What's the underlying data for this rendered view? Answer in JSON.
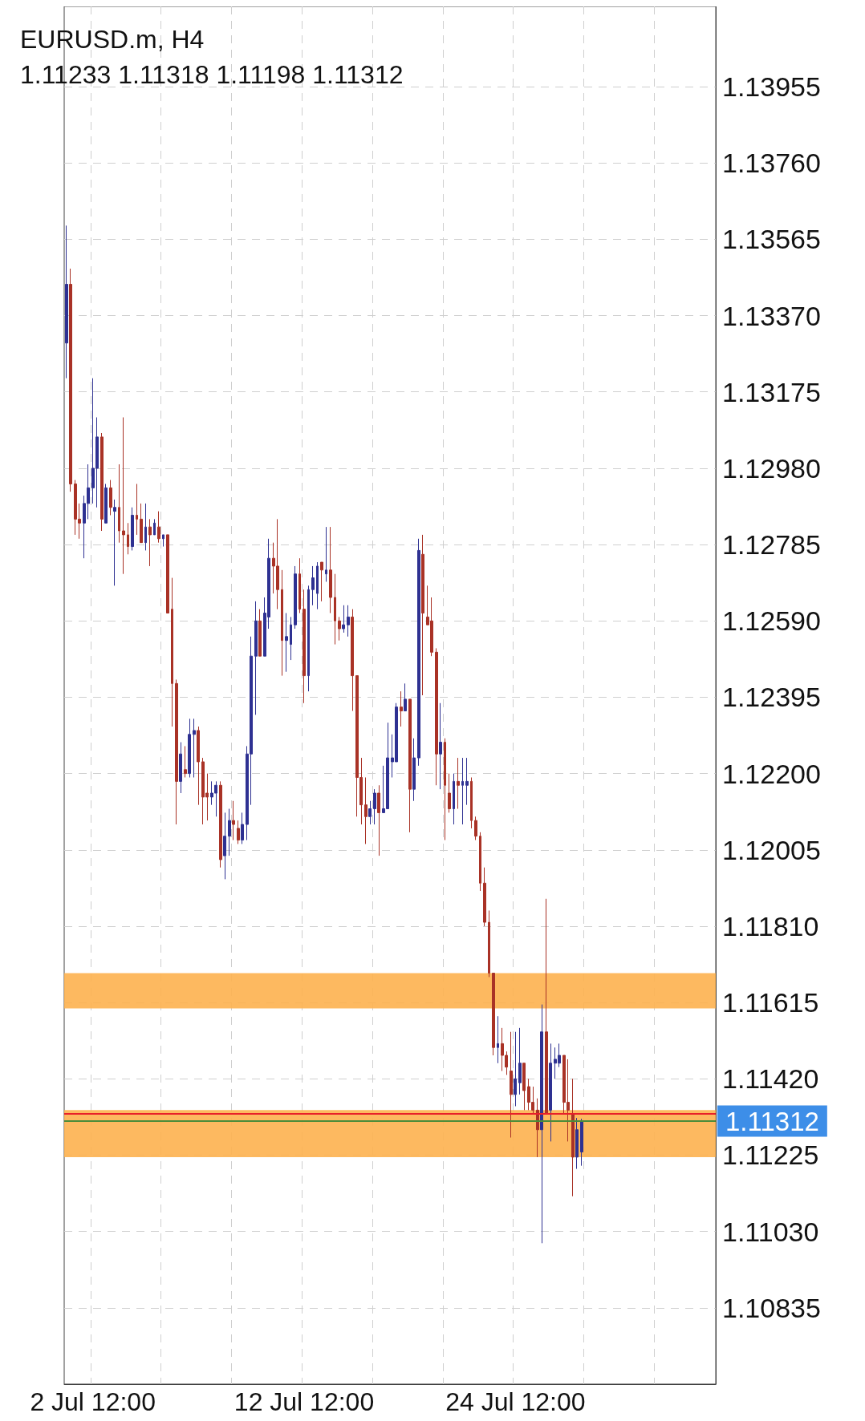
{
  "chart_data": {
    "type": "candlestick",
    "title": "EURUSD.m, H4",
    "subtitle": "1.11233 1.11318 1.11198 1.11312",
    "categories": [
      null,
      null,
      null,
      null,
      null,
      null,
      "2 Jul 12:00",
      null,
      null,
      null,
      null,
      null,
      null,
      null,
      null,
      null,
      null,
      null,
      null,
      null,
      null,
      null,
      null,
      null,
      null,
      null,
      null,
      null,
      null,
      null,
      null,
      null,
      null,
      null,
      null,
      null,
      null,
      null,
      null,
      null,
      null,
      null,
      null,
      null,
      null,
      null,
      null,
      null,
      null,
      null,
      null,
      null,
      null,
      null,
      "12 Jul 12:00",
      null,
      null,
      null,
      null,
      null,
      null,
      null,
      null,
      null,
      null,
      null,
      null,
      null,
      null,
      null,
      null,
      null,
      null,
      null,
      null,
      null,
      null,
      null,
      null,
      null,
      null,
      null,
      null,
      null,
      null,
      null,
      null,
      null,
      null,
      null,
      null,
      null,
      null,
      null,
      null,
      null,
      null,
      null,
      null,
      null,
      null,
      null,
      "24 Jul 12:00",
      null,
      null,
      null,
      null,
      null,
      null,
      null,
      null,
      null,
      null,
      null,
      null,
      null,
      null,
      null,
      null,
      null,
      null,
      null,
      null,
      null,
      null,
      null,
      null,
      null,
      null,
      null,
      null,
      null,
      null,
      null,
      null,
      null,
      null,
      null,
      null,
      null,
      null,
      null,
      null,
      null,
      null,
      null,
      null,
      null
    ],
    "ohlc": [
      [
        1.133,
        1.136,
        1.1321,
        1.1345
      ],
      [
        1.1345,
        1.1349,
        1.1292,
        1.1294
      ],
      [
        1.1294,
        1.1295,
        1.1281,
        1.1285
      ],
      [
        1.1285,
        1.1289,
        1.128,
        1.1284
      ],
      [
        1.1284,
        1.1291,
        1.1275,
        1.1289
      ],
      [
        1.1289,
        1.1299,
        1.1285,
        1.1293
      ],
      [
        1.1293,
        1.1321,
        1.1289,
        1.1298
      ],
      [
        1.1298,
        1.1311,
        1.1288,
        1.1306
      ],
      [
        1.1306,
        1.1307,
        1.1282,
        1.1285
      ],
      [
        1.1284,
        1.1294,
        1.1284,
        1.1293
      ],
      [
        1.1293,
        1.1295,
        1.1286,
        1.1288
      ],
      [
        1.1287,
        1.129,
        1.1268,
        1.1288
      ],
      [
        1.1288,
        1.1299,
        1.1279,
        1.1282
      ],
      [
        1.1282,
        1.1311,
        1.1271,
        1.1281
      ],
      [
        1.1281,
        1.1284,
        1.1276,
        1.1278
      ],
      [
        1.1278,
        1.1288,
        1.1277,
        1.1286
      ],
      [
        1.1286,
        1.1294,
        1.1281,
        1.1285
      ],
      [
        1.1285,
        1.1289,
        1.1279,
        1.1279
      ],
      [
        1.1279,
        1.1289,
        1.1277,
        1.1283
      ],
      [
        1.1283,
        1.1285,
        1.1273,
        1.1281
      ],
      [
        1.1281,
        1.1285,
        1.1281,
        1.1284
      ],
      [
        1.1283,
        1.1287,
        1.1279,
        1.128
      ],
      [
        1.128,
        1.1281,
        1.1278,
        1.1281
      ],
      [
        1.1281,
        1.1281,
        1.1261,
        1.1261
      ],
      [
        1.1262,
        1.127,
        1.1232,
        1.1243
      ],
      [
        1.1243,
        1.1244,
        1.1207,
        1.1218
      ],
      [
        1.1218,
        1.1228,
        1.1215,
        1.1225
      ],
      [
        1.1221,
        1.1227,
        1.1219,
        1.122
      ],
      [
        1.122,
        1.1234,
        1.1219,
        1.123
      ],
      [
        1.123,
        1.1234,
        1.1219,
        1.1231
      ],
      [
        1.1231,
        1.1232,
        1.1212,
        1.1223
      ],
      [
        1.1223,
        1.1224,
        1.1207,
        1.1214
      ],
      [
        1.1215,
        1.122,
        1.1208,
        1.1214
      ],
      [
        1.1214,
        1.1218,
        1.1212,
        1.1215
      ],
      [
        1.1215,
        1.1218,
        1.1209,
        1.1217
      ],
      [
        1.1217,
        1.1218,
        1.1196,
        1.1198
      ],
      [
        1.1199,
        1.121,
        1.1193,
        1.1204
      ],
      [
        1.1204,
        1.1211,
        1.1199,
        1.1208
      ],
      [
        1.1208,
        1.1213,
        1.1203,
        1.1207
      ],
      [
        1.1206,
        1.1208,
        1.1202,
        1.1203
      ],
      [
        1.1203,
        1.121,
        1.1202,
        1.1207
      ],
      [
        1.1207,
        1.1227,
        1.1203,
        1.1225
      ],
      [
        1.1225,
        1.1255,
        1.1212,
        1.125
      ],
      [
        1.125,
        1.1264,
        1.1235,
        1.1259
      ],
      [
        1.1259,
        1.1262,
        1.125,
        1.125
      ],
      [
        1.125,
        1.1265,
        1.125,
        1.1261
      ],
      [
        1.126,
        1.128,
        1.1257,
        1.1275
      ],
      [
        1.1275,
        1.1279,
        1.1266,
        1.1273
      ],
      [
        1.1273,
        1.1285,
        1.1262,
        1.1267
      ],
      [
        1.1267,
        1.1272,
        1.1245,
        1.1254
      ],
      [
        1.1254,
        1.1261,
        1.1246,
        1.1255
      ],
      [
        1.1253,
        1.126,
        1.1249,
        1.1258
      ],
      [
        1.1258,
        1.1273,
        1.1257,
        1.1271
      ],
      [
        1.1271,
        1.1275,
        1.1261,
        1.1262
      ],
      [
        1.1262,
        1.1267,
        1.1238,
        1.1245
      ],
      [
        1.1245,
        1.1268,
        1.1241,
        1.1267
      ],
      [
        1.1267,
        1.1273,
        1.1263,
        1.127
      ],
      [
        1.1266,
        1.1274,
        1.1262,
        1.1273
      ],
      [
        1.1274,
        1.1274,
        1.1264,
        1.1272
      ],
      [
        1.1271,
        1.1283,
        1.1269,
        1.1272
      ],
      [
        1.1272,
        1.1283,
        1.1261,
        1.1265
      ],
      [
        1.1265,
        1.1271,
        1.1253,
        1.1259
      ],
      [
        1.1259,
        1.126,
        1.1254,
        1.1257
      ],
      [
        1.1257,
        1.1263,
        1.1256,
        1.1258
      ],
      [
        1.1258,
        1.1263,
        1.1255,
        1.126
      ],
      [
        1.126,
        1.1262,
        1.1236,
        1.1245
      ],
      [
        1.1245,
        1.1245,
        1.1209,
        1.1219
      ],
      [
        1.1219,
        1.1224,
        1.1207,
        1.1212
      ],
      [
        1.1212,
        1.1219,
        1.1202,
        1.1209
      ],
      [
        1.1209,
        1.1213,
        1.1207,
        1.1211
      ],
      [
        1.1211,
        1.1216,
        1.1207,
        1.1215
      ],
      [
        1.1215,
        1.1217,
        1.1199,
        1.121
      ],
      [
        1.121,
        1.1222,
        1.121,
        1.1211
      ],
      [
        1.1211,
        1.1233,
        1.1211,
        1.1224
      ],
      [
        1.1223,
        1.123,
        1.1219,
        1.1224
      ],
      [
        1.1223,
        1.1238,
        1.1223,
        1.1237
      ],
      [
        1.1237,
        1.1241,
        1.1232,
        1.1236
      ],
      [
        1.1236,
        1.1243,
        1.1236,
        1.1239
      ],
      [
        1.1239,
        1.1239,
        1.1205,
        1.1216
      ],
      [
        1.1216,
        1.1229,
        1.1213,
        1.1224
      ],
      [
        1.1224,
        1.128,
        1.1222,
        1.1277
      ],
      [
        1.1276,
        1.1281,
        1.124,
        1.1261
      ],
      [
        1.126,
        1.1268,
        1.1258,
        1.1258
      ],
      [
        1.1259,
        1.1265,
        1.125,
        1.1251
      ],
      [
        1.1251,
        1.1252,
        1.1217,
        1.1225
      ],
      [
        1.1225,
        1.1238,
        1.1216,
        1.1228
      ],
      [
        1.1228,
        1.1229,
        1.1203,
        1.1217
      ],
      [
        1.1215,
        1.122,
        1.121,
        1.1211
      ],
      [
        1.1211,
        1.122,
        1.1207,
        1.1218
      ],
      [
        1.1218,
        1.1224,
        1.1211,
        1.1217
      ],
      [
        1.1217,
        1.1224,
        1.1207,
        1.1218
      ],
      [
        1.1217,
        1.1224,
        1.1212,
        1.1218
      ],
      [
        1.1218,
        1.1219,
        1.1206,
        1.1208
      ],
      [
        1.1208,
        1.1209,
        1.1203,
        1.1204
      ],
      [
        1.1204,
        1.1205,
        1.119,
        1.1192
      ],
      [
        1.1192,
        1.1196,
        1.1181,
        1.1182
      ],
      [
        1.1182,
        1.1185,
        1.1168,
        1.1169
      ],
      [
        1.1169,
        1.1169,
        1.1148,
        1.115
      ],
      [
        1.115,
        1.1158,
        1.1146,
        1.1151
      ],
      [
        1.1151,
        1.1155,
        1.1144,
        1.1148
      ],
      [
        1.1148,
        1.1149,
        1.1143,
        1.1145
      ],
      [
        1.1144,
        1.1154,
        1.1127,
        1.1138
      ],
      [
        1.1138,
        1.1154,
        1.1135,
        1.1142
      ],
      [
        1.1141,
        1.1155,
        1.1138,
        1.1146
      ],
      [
        1.1146,
        1.1146,
        1.1134,
        1.1139
      ],
      [
        1.114,
        1.1142,
        1.1134,
        1.1136
      ],
      [
        1.1136,
        1.114,
        1.1133,
        1.1134
      ],
      [
        1.1134,
        1.1137,
        1.1122,
        1.1129
      ],
      [
        1.1129,
        1.1161,
        1.11,
        1.1154
      ],
      [
        1.1154,
        1.1188,
        1.1133,
        1.1133
      ],
      [
        1.1134,
        1.1151,
        1.1126,
        1.1146
      ],
      [
        1.1146,
        1.115,
        1.1142,
        1.1147
      ],
      [
        1.1146,
        1.1151,
        1.1145,
        1.1148
      ],
      [
        1.1148,
        1.1148,
        1.1133,
        1.1136
      ],
      [
        1.1136,
        1.1147,
        1.1126,
        1.1134
      ],
      [
        1.1133,
        1.1142,
        1.1112,
        1.1122
      ],
      [
        1.1122,
        1.1132,
        1.1119,
        1.1129
      ],
      [
        1.11233,
        1.11318,
        1.11198,
        1.11312
      ],
      null,
      null,
      null,
      null,
      null,
      null,
      null,
      null,
      null,
      null,
      null,
      null,
      null,
      null,
      null,
      null,
      null,
      null,
      null,
      null,
      null,
      null,
      null,
      null,
      null,
      null,
      null,
      null,
      null,
      null
    ],
    "colors": [
      "#2e3192",
      "#a93226",
      "#a93226",
      "#a93226",
      "#2e3192",
      "#2e3192",
      "#2e3192",
      "#2e3192",
      "#a93226",
      "#2e3192",
      "#a93226",
      "#2e3192",
      "#a93226",
      "#a93226",
      "#a93226",
      "#2e3192",
      "#a93226",
      "#a93226",
      "#2e3192",
      "#a93226",
      "#2e3192",
      "#a93226",
      "#2e3192",
      "#a93226",
      "#a93226",
      "#a93226",
      "#2e3192",
      "#a93226",
      "#2e3192",
      "#2e3192",
      "#a93226",
      "#a93226",
      "#a93226",
      "#2e3192",
      "#2e3192",
      "#a93226",
      "#2e3192",
      "#2e3192",
      "#a93226",
      "#a93226",
      "#2e3192",
      "#2e3192",
      "#2e3192",
      "#2e3192",
      "#a93226",
      "#2e3192",
      "#2e3192",
      "#a93226",
      "#a93226",
      "#a93226",
      "#2e3192",
      "#2e3192",
      "#2e3192",
      "#a93226",
      "#a93226",
      "#2e3192",
      "#2e3192",
      "#2e3192",
      "#a93226",
      "#2e3192",
      "#a93226",
      "#a93226",
      "#a93226",
      "#2e3192",
      "#2e3192",
      "#a93226",
      "#a93226",
      "#a93226",
      "#a93226",
      "#2e3192",
      "#2e3192",
      "#a93226",
      "#2e3192",
      "#2e3192",
      "#2e3192",
      "#2e3192",
      "#a93226",
      "#2e3192",
      "#a93226",
      "#2e3192",
      "#2e3192",
      "#a93226",
      "#a93226",
      "#a93226",
      "#a93226",
      "#2e3192",
      "#a93226",
      "#a93226",
      "#2e3192",
      "#a93226",
      "#2e3192",
      "#2e3192",
      "#a93226",
      "#a93226",
      "#a93226",
      "#a93226",
      "#a93226",
      "#a93226",
      "#2e3192",
      "#a93226",
      "#a93226",
      "#a93226",
      "#2e3192",
      "#2e3192",
      "#a93226",
      "#a93226",
      "#a93226",
      "#a93226",
      "#2e3192",
      "#a93226",
      "#2e3192",
      "#2e3192",
      "#2e3192",
      "#a93226",
      "#a93226",
      "#a93226",
      "#2e3192",
      "#2e3192",
      null,
      null,
      null,
      null,
      null,
      null,
      null,
      null,
      null,
      null,
      null,
      null,
      null,
      null,
      null,
      null,
      null,
      null,
      null,
      null,
      null,
      null,
      null,
      null,
      null,
      null,
      null,
      null,
      null,
      null
    ],
    "ylim": [
      1.1064,
      1.1416
    ],
    "yticks": [
      {
        "value": 1.13955,
        "label": "1.13955"
      },
      {
        "value": 1.1376,
        "label": "1.13760"
      },
      {
        "value": 1.13565,
        "label": "1.13565"
      },
      {
        "value": 1.1337,
        "label": "1.13370"
      },
      {
        "value": 1.13175,
        "label": "1.13175"
      },
      {
        "value": 1.1298,
        "label": "1.12980"
      },
      {
        "value": 1.12785,
        "label": "1.12785"
      },
      {
        "value": 1.1259,
        "label": "1.12590"
      },
      {
        "value": 1.12395,
        "label": "1.12395"
      },
      {
        "value": 1.122,
        "label": "1.12200"
      },
      {
        "value": 1.12005,
        "label": "1.12005"
      },
      {
        "value": 1.1181,
        "label": "1.11810"
      },
      {
        "value": 1.11615,
        "label": "1.11615"
      },
      {
        "value": 1.1142,
        "label": "1.11420"
      },
      {
        "value": 1.11225,
        "label": "1.11225"
      },
      {
        "value": 1.1103,
        "label": "1.11030"
      },
      {
        "value": 1.10835,
        "label": "1.10835"
      }
    ],
    "bands": [
      {
        "axis": "y",
        "from": 1.116,
        "to": 1.1169,
        "color": "#fdb14f"
      },
      {
        "axis": "y",
        "from": 1.1122,
        "to": 1.1134,
        "color": "#fdb14f"
      }
    ],
    "ref_lines": [
      {
        "axis": "y",
        "value": 1.1133,
        "color": "#e8202a"
      },
      {
        "axis": "y",
        "value": 1.11312,
        "label": "1.11312",
        "color": "#4a8c3a"
      }
    ],
    "grid": true
  }
}
